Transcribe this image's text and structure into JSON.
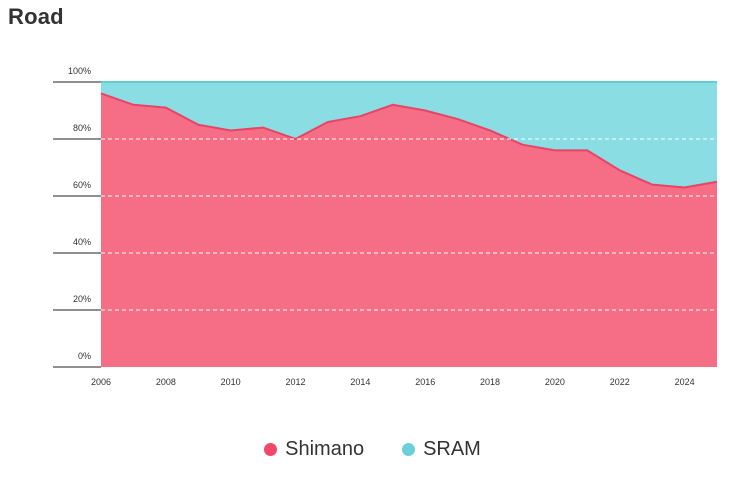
{
  "chart_data": {
    "type": "area",
    "stacked": true,
    "percent": true,
    "title": "Road",
    "x": [
      2006,
      2007,
      2008,
      2009,
      2010,
      2011,
      2012,
      2013,
      2014,
      2015,
      2016,
      2017,
      2018,
      2019,
      2020,
      2021,
      2022,
      2023,
      2024,
      2025
    ],
    "x_tick_labels": [
      "2006",
      "2008",
      "2010",
      "2012",
      "2014",
      "2016",
      "2018",
      "2020",
      "2022",
      "2024"
    ],
    "y_tick_labels": [
      "0%",
      "20%",
      "40%",
      "60%",
      "80%",
      "100%"
    ],
    "ylim": [
      0,
      100
    ],
    "series": [
      {
        "name": "Shimano",
        "color": "#f56e86",
        "line_color": "#e84466",
        "values": [
          96,
          92,
          91,
          85,
          83,
          84,
          80,
          86,
          88,
          92,
          90,
          87,
          83,
          78,
          76,
          76,
          69,
          64,
          63,
          65
        ]
      },
      {
        "name": "SRAM",
        "color": "#8adde2",
        "line_color": "#5ecdd4",
        "values": [
          4,
          8,
          9,
          15,
          17,
          16,
          20,
          14,
          12,
          8,
          10,
          13,
          17,
          22,
          24,
          24,
          31,
          36,
          37,
          35
        ]
      }
    ],
    "grid": "dashed-white",
    "legend_position": "bottom-center"
  },
  "legend": [
    {
      "label": "Shimano",
      "color": "#f0476a"
    },
    {
      "label": "SRAM",
      "color": "#6dd0d8"
    }
  ]
}
